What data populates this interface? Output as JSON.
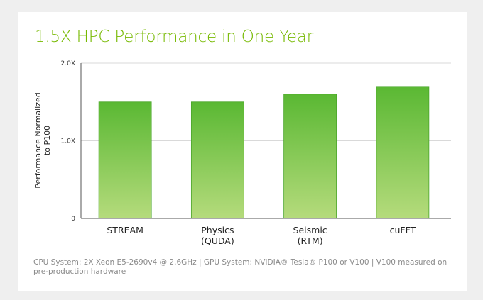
{
  "chart_data": {
    "type": "bar",
    "title": "1.5X HPC Performance in One Year",
    "ylabel_lines": [
      "Performance Normalized",
      "to P100"
    ],
    "categories": [
      {
        "lines": [
          "STREAM"
        ]
      },
      {
        "lines": [
          "Physics",
          "(QUDA)"
        ]
      },
      {
        "lines": [
          "Seismic",
          "(RTM)"
        ]
      },
      {
        "lines": [
          "cuFFT"
        ]
      }
    ],
    "values": [
      1.5,
      1.5,
      1.6,
      1.7
    ],
    "ylim": [
      0,
      2.0
    ],
    "yticks": [
      {
        "value": 0,
        "label": "0"
      },
      {
        "value": 1.0,
        "label": "1.0X"
      },
      {
        "value": 2.0,
        "label": "2.0X"
      }
    ],
    "grid": true,
    "colors": {
      "bar_top": "#5ab833",
      "bar_bottom": "#b5db7c",
      "bar_edge": "#4aa52a",
      "title": "#76b900"
    }
  },
  "footnote": "CPU System: 2X Xeon E5-2690v4 @ 2.6GHz   |   GPU System: NVIDIA® Tesla® P100 or V100  |  V100 measured on pre-production hardware"
}
